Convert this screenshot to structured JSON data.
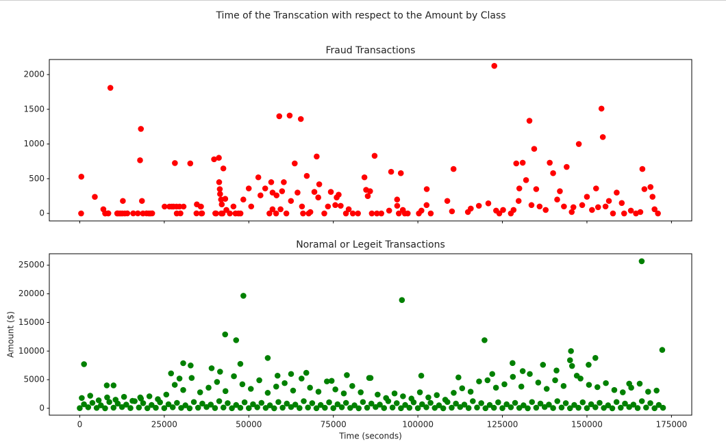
{
  "title": "Time of the Transcation with respect to the Amount by Class",
  "chart_data": [
    {
      "type": "scatter",
      "title": "Fraud Transactions",
      "color": "#ff0000",
      "xtick_labels": false,
      "xlim": [
        -9000,
        181000
      ],
      "ylim": [
        -108,
        2217
      ],
      "xticks": [
        0,
        25000,
        50000,
        75000,
        100000,
        125000,
        150000,
        175000
      ],
      "yticks": [
        0,
        500,
        1000,
        1500,
        2000
      ],
      "x": [
        406,
        472,
        4462,
        6986,
        7519,
        7535,
        8408,
        8451,
        9064,
        11080,
        11131,
        11629,
        12093,
        12597,
        12752,
        13323,
        14073,
        15817,
        17187,
        17838,
        18088,
        18399,
        18690,
        19762,
        20451,
        20931,
        21419,
        25095,
        26523,
        27219,
        27703,
        28143,
        28625,
        28692,
        29526,
        29785,
        30707,
        32686,
        34521,
        34634,
        35771,
        35866,
        35953,
        36170,
        39729,
        40086,
        40319,
        41147,
        41233,
        41413,
        41505,
        41791,
        41851,
        42008,
        42247,
        42474,
        43028,
        43369,
        44393,
        45463,
        46057,
        46925,
        47545,
        48380,
        49985,
        50706,
        52814,
        53451,
        54846,
        56098,
        56624,
        57007,
        57027,
        58067,
        58199,
        59011,
        59385,
        59840,
        60353,
        61108,
        62080,
        62467,
        63578,
        64412,
        65385,
        65728,
        66037,
        67150,
        67708,
        68207,
        69394,
        70071,
        70536,
        70828,
        72327,
        73408,
        74262,
        75581,
        75990,
        76575,
        77171,
        78725,
        79540,
        80760,
        82289,
        84204,
        84694,
        85181,
        85867,
        86376,
        87202,
        87883,
        89190,
        91502,
        92092,
        93860,
        93888,
        94362,
        94960,
        95559,
        96135,
        97000,
        100298,
        101051,
        102572,
        102625,
        103808,
        108708,
        110087,
        110547,
        114800,
        115645,
        118040,
        120837,
        122608,
        123141,
        124087,
        125200,
        127500,
        128300,
        129100,
        129800,
        130000,
        131000,
        132000,
        133000,
        133600,
        134400,
        135000,
        136000,
        137800,
        139000,
        140000,
        141200,
        142000,
        143200,
        144000,
        145500,
        146000,
        147600,
        148600,
        150000,
        151500,
        152700,
        153300,
        154300,
        154700,
        155500,
        156500,
        157700,
        158800,
        160300,
        161000,
        163000,
        164500,
        165800,
        166400,
        167000,
        168800,
        169400,
        170000,
        171000
      ],
      "values": [
        0,
        529,
        239,
        60,
        1,
        0,
        1,
        1,
        1809,
        0,
        1,
        0,
        0,
        0,
        180,
        0,
        1,
        1,
        1,
        766,
        1218,
        180,
        0,
        1,
        0,
        0,
        1,
        99,
        99,
        99,
        99,
        725,
        99,
        0,
        99,
        1,
        99,
        720,
        1,
        130,
        99,
        99,
        0,
        1,
        780,
        1,
        0,
        801,
        450,
        350,
        280,
        200,
        0,
        130,
        0,
        648,
        210,
        50,
        0,
        100,
        0,
        0,
        0,
        200,
        360,
        100,
        520,
        260,
        360,
        0,
        450,
        60,
        300,
        0,
        260,
        1400,
        60,
        320,
        450,
        0,
        1410,
        180,
        720,
        300,
        1360,
        100,
        0,
        540,
        0,
        20,
        310,
        820,
        230,
        420,
        0,
        100,
        310,
        120,
        230,
        270,
        110,
        0,
        60,
        0,
        0,
        520,
        340,
        250,
        320,
        0,
        830,
        0,
        0,
        40,
        600,
        200,
        110,
        0,
        580,
        50,
        0,
        0,
        0,
        40,
        120,
        350,
        0,
        180,
        30,
        640,
        20,
        70,
        110,
        145,
        2125,
        40,
        0,
        50,
        0,
        50,
        720,
        180,
        360,
        730,
        480,
        1335,
        120,
        930,
        350,
        100,
        50,
        730,
        580,
        200,
        320,
        100,
        670,
        20,
        90,
        1000,
        120,
        240,
        50,
        360,
        90,
        1510,
        1100,
        100,
        180,
        0,
        300,
        150,
        0,
        40,
        0,
        20,
        640,
        350,
        380,
        240,
        60,
        0
      ]
    },
    {
      "type": "scatter",
      "title": "Noramal or Legeit Transactions",
      "color": "#008000",
      "xtick_labels": true,
      "xlabel": "Time (seconds)",
      "ylabel": "Amount ($)",
      "xlim": [
        -9000,
        181000
      ],
      "ylim": [
        -1200,
        27000
      ],
      "xticks": [
        0,
        25000,
        50000,
        75000,
        100000,
        125000,
        150000,
        175000
      ],
      "yticks": [
        0,
        5000,
        10000,
        15000,
        20000,
        25000
      ],
      "x": [
        0,
        2500,
        5000,
        7500,
        10000,
        12500,
        15000,
        17500,
        20000,
        22500,
        25000,
        27500,
        30000,
        32500,
        35000,
        37500,
        40000,
        42500,
        45000,
        47500,
        50000,
        52500,
        55000,
        57500,
        60000,
        62500,
        65000,
        67500,
        70000,
        72500,
        75000,
        77500,
        80000,
        82500,
        85000,
        87500,
        90000,
        92500,
        95000,
        97500,
        100000,
        102500,
        105000,
        107500,
        110000,
        112500,
        115000,
        117500,
        120000,
        122500,
        125000,
        127500,
        130000,
        132500,
        135000,
        137500,
        140000,
        142500,
        145000,
        147500,
        150000,
        152500,
        155000,
        157500,
        160000,
        162500,
        165000,
        167500,
        170000,
        172500,
        1250,
        3750,
        6250,
        8750,
        11250,
        13750,
        16250,
        18750,
        21250,
        23750,
        26250,
        28750,
        31250,
        33750,
        36250,
        38750,
        41250,
        43750,
        46250,
        48750,
        51250,
        53750,
        56250,
        58750,
        61250,
        63750,
        66250,
        68750,
        71250,
        73750,
        76250,
        78750,
        81250,
        83750,
        86250,
        88750,
        91250,
        93750,
        96250,
        98750,
        101250,
        103750,
        106250,
        108750,
        111250,
        113750,
        116250,
        118750,
        121250,
        123750,
        126250,
        128750,
        131250,
        133750,
        136250,
        138750,
        141250,
        143750,
        146250,
        148750,
        151250,
        153750,
        156250,
        158750,
        161250,
        163750,
        166250,
        168750,
        171250,
        600,
        3100,
        5600,
        8100,
        10600,
        13100,
        15600,
        18100,
        20600,
        23100,
        25600,
        28100,
        30600,
        33100,
        35600,
        38100,
        40600,
        43100,
        45600,
        48100,
        50600,
        53100,
        55600,
        58100,
        60600,
        63100,
        65600,
        68100,
        70600,
        73100,
        75600,
        78100,
        80600,
        83100,
        85600,
        88100,
        90600,
        93100,
        95600,
        98100,
        100600,
        103100,
        105600,
        108100,
        110600,
        113100,
        115600,
        118100,
        120600,
        123100,
        125600,
        128100,
        130600,
        133100,
        135600,
        138100,
        140600,
        143100,
        145600,
        148100,
        150600,
        153100,
        155600,
        158100,
        160600,
        163100,
        165600,
        168100,
        170600,
        1264,
        8000,
        10000,
        17900,
        27000,
        29500,
        30600,
        32800,
        39000,
        41500,
        43000,
        46253,
        47500,
        48400,
        55600,
        58500,
        62500,
        67000,
        74500,
        79000,
        86000,
        95286,
        101000,
        112000,
        119713,
        122000,
        128000,
        131000,
        137000,
        141000,
        145000,
        145283,
        147000,
        150500,
        152500,
        162500,
        166198,
        172273
      ],
      "values": [
        30,
        180,
        70,
        5,
        110,
        220,
        45,
        140,
        12,
        90,
        30,
        180,
        70,
        5,
        110,
        220,
        45,
        140,
        12,
        90,
        30,
        180,
        70,
        5,
        110,
        220,
        45,
        140,
        12,
        90,
        30,
        180,
        70,
        5,
        110,
        220,
        45,
        140,
        12,
        90,
        30,
        180,
        70,
        5,
        110,
        220,
        45,
        140,
        12,
        90,
        30,
        180,
        70,
        5,
        110,
        220,
        45,
        140,
        12,
        90,
        30,
        180,
        70,
        5,
        110,
        220,
        45,
        140,
        12,
        90,
        700,
        950,
        520,
        1100,
        820,
        640,
        1250,
        900,
        580,
        1050,
        700,
        950,
        520,
        1100,
        820,
        640,
        1250,
        900,
        580,
        1050,
        700,
        950,
        520,
        1100,
        820,
        640,
        1250,
        900,
        580,
        1050,
        700,
        950,
        520,
        1100,
        820,
        640,
        1250,
        900,
        580,
        1050,
        700,
        950,
        520,
        1100,
        820,
        640,
        1250,
        900,
        580,
        1050,
        700,
        950,
        520,
        1100,
        820,
        640,
        1250,
        900,
        580,
        1050,
        700,
        950,
        520,
        1100,
        820,
        640,
        1250,
        900,
        580,
        1800,
        2200,
        1400,
        1900,
        1500,
        2000,
        1300,
        1700,
        2100,
        1600,
        2400,
        4100,
        3200,
        5300,
        2800,
        3600,
        4600,
        3000,
        5600,
        4200,
        3400,
        4900,
        2700,
        3800,
        4400,
        3100,
        5200,
        3600,
        2900,
        4700,
        3300,
        2600,
        3900,
        2800,
        5300,
        2400,
        1800,
        2600,
        2100,
        1700,
        2800,
        1900,
        2300,
        1500,
        2700,
        3500,
        2900,
        4700,
        4900,
        3600,
        4200,
        5500,
        3800,
        6000,
        4500,
        3400,
        4900,
        3900,
        7400,
        5200,
        4100,
        3700,
        4400,
        3200,
        2800,
        3600,
        4300,
        2900,
        3100,
        7712,
        4000,
        4000,
        1900,
        6100,
        5200,
        7880,
        7480,
        7000,
        6400,
        12910,
        11898,
        7760,
        19656,
        8790,
        5700,
        6000,
        6200,
        4800,
        5800,
        5300,
        18910,
        5700,
        5400,
        11898,
        6000,
        7900,
        6500,
        7600,
        6600,
        8400,
        10000,
        5700,
        7600,
        8800,
        4300,
        25691,
        10199
      ]
    }
  ]
}
